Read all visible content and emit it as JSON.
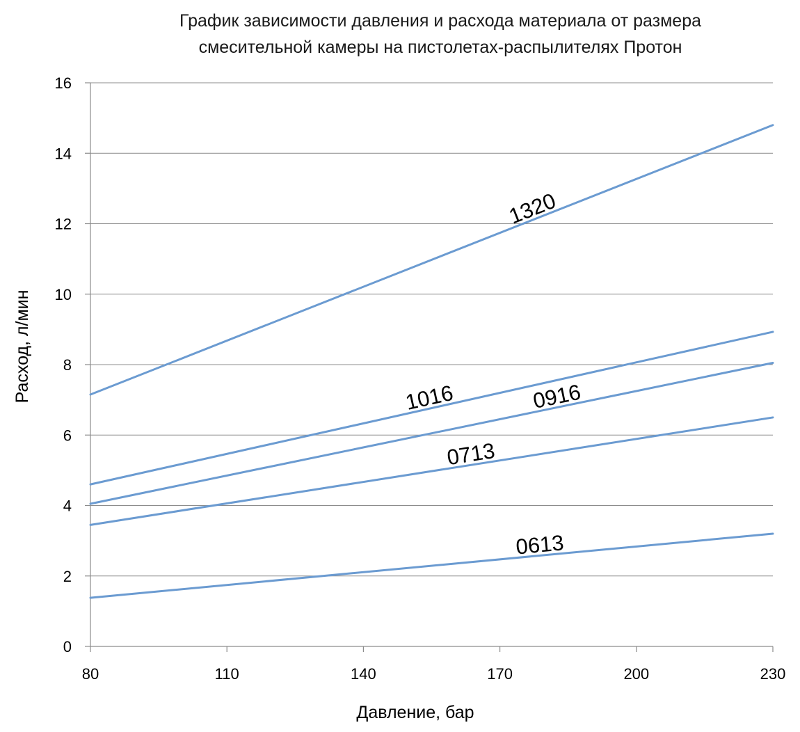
{
  "chart_data": {
    "type": "line",
    "title": "График зависимости давления и расхода материала от размера смесительной камеры на пистолетах-распылителях Протон",
    "title_lines": [
      "График зависимости давления и расхода материала от размера",
      "смесительной камеры на пистолетах-распылителях Протон"
    ],
    "xlabel": "Давление, бар",
    "ylabel": "Расход, л/мин",
    "xlim": [
      80,
      230
    ],
    "ylim": [
      0,
      16
    ],
    "x_ticks": [
      80,
      110,
      140,
      170,
      200,
      230
    ],
    "y_ticks": [
      0,
      2,
      4,
      6,
      8,
      10,
      12,
      14,
      16
    ],
    "grid": true,
    "legend": "none (inline labels on lines)",
    "line_color": "#6b9bd1",
    "series": [
      {
        "name": "1320",
        "x": [
          80,
          230
        ],
        "y": [
          7.15,
          14.8
        ]
      },
      {
        "name": "1016",
        "x": [
          80,
          230
        ],
        "y": [
          4.6,
          8.93
        ]
      },
      {
        "name": "0916",
        "x": [
          80,
          230
        ],
        "y": [
          4.05,
          8.05
        ]
      },
      {
        "name": "0713",
        "x": [
          80,
          230
        ],
        "y": [
          3.45,
          6.5
        ]
      },
      {
        "name": "0613",
        "x": [
          80,
          230
        ],
        "y": [
          1.38,
          3.2
        ]
      }
    ],
    "label_positions_x": {
      "1320": 178,
      "1016": 155,
      "0916": 183,
      "0713": 164,
      "0613": 179
    }
  }
}
